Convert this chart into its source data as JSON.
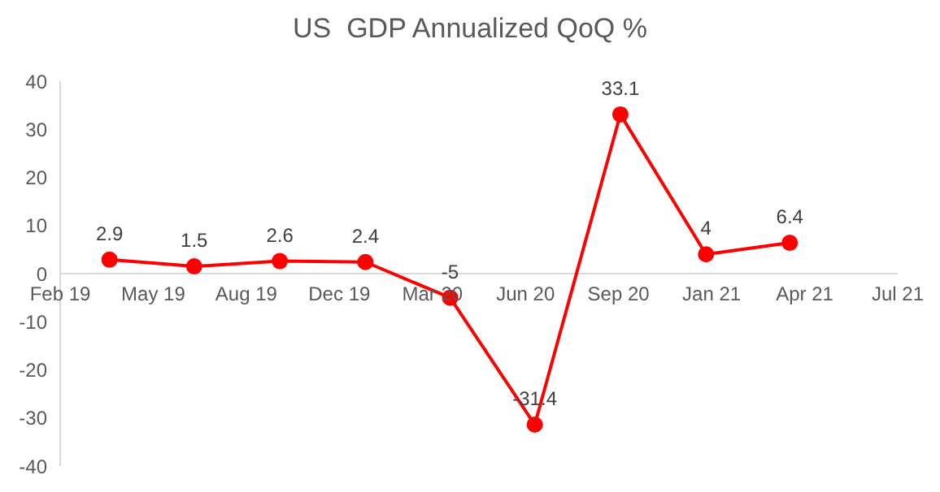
{
  "chart_data": {
    "type": "line",
    "title": "US  GDP Annualized QoQ %",
    "x": [
      "2019-03-31",
      "2019-06-30",
      "2019-09-30",
      "2019-12-31",
      "2020-03-31",
      "2020-06-30",
      "2020-09-30",
      "2020-12-31",
      "2021-03-31"
    ],
    "series": [
      {
        "color": "#ff0000",
        "values": [
          2.9,
          1.5,
          2.6,
          2.4,
          -5,
          -31.4,
          33.1,
          4,
          6.4
        ]
      }
    ],
    "xlim": [
      "2019-02-06",
      "2021-07-25"
    ],
    "xticks": [
      {
        "value": "2019-02-06",
        "label": "Feb 19"
      },
      {
        "value": "2019-05-17",
        "label": "May 19"
      },
      {
        "value": "2019-08-25",
        "label": "Aug 19"
      },
      {
        "value": "2019-12-03",
        "label": "Dec 19"
      },
      {
        "value": "2020-03-12",
        "label": "Mar 20"
      },
      {
        "value": "2020-06-20",
        "label": "Jun 20"
      },
      {
        "value": "2020-09-28",
        "label": "Sep 20"
      },
      {
        "value": "2021-01-06",
        "label": "Jan 21"
      },
      {
        "value": "2021-04-16",
        "label": "Apr 21"
      },
      {
        "value": "2021-07-25",
        "label": "Jul 21"
      }
    ],
    "ylim": [
      -40,
      40
    ],
    "yticks": [
      -40,
      -30,
      -20,
      -10,
      0,
      10,
      20,
      30,
      40
    ],
    "grid": false,
    "legend": false,
    "marker": "circle",
    "line_style": "solid",
    "data_labels": true
  }
}
